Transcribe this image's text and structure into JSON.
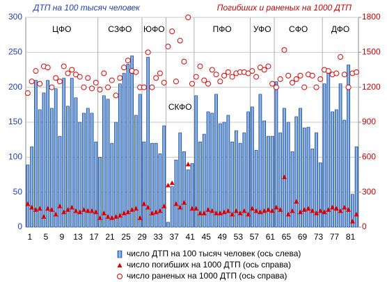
{
  "chart_data": {
    "type": "bar",
    "title": "ДТП на 100 тысяч человек",
    "subtitle": "Погибших и раненых на 1000 ДТП",
    "groups": [
      "ЦФО",
      "СЗФО",
      "ЮФО",
      "СКФО",
      "ПФО",
      "УФО",
      "СФО",
      "ДФО"
    ],
    "categories": [
      "1",
      null,
      null,
      null,
      "5",
      null,
      null,
      null,
      "9",
      null,
      null,
      null,
      "13",
      null,
      null,
      null,
      "17",
      null,
      null,
      null,
      "21",
      null,
      null,
      null,
      "25",
      null,
      null,
      null,
      "29",
      null,
      null,
      null,
      "33",
      null,
      null,
      null,
      "37",
      null,
      null,
      null,
      "41",
      null,
      null,
      null,
      "45",
      null,
      null,
      null,
      "49",
      null,
      null,
      null,
      "53",
      null,
      null,
      null,
      "57",
      null,
      null,
      null,
      "61",
      null,
      null,
      null,
      "65",
      null,
      null,
      null,
      "69",
      null,
      null,
      null,
      "73",
      null,
      null,
      null,
      "77",
      null,
      null,
      null,
      "81",
      null,
      null
    ],
    "series": [
      {
        "name": "число ДТП на 100 тысяч человек (ось слева)",
        "color": "#5b9bd5",
        "type": "bar",
        "values": [
          89,
          115,
          210,
          168,
          192,
          210,
          170,
          198,
          130,
          213,
          173,
          213,
          185,
          150,
          163,
          170,
          163,
          122,
          100,
          188,
          183,
          120,
          150,
          205,
          220,
          233,
          245,
          160,
          190,
          122,
          243,
          120,
          120,
          105,
          145,
          7,
          58,
          96,
          135,
          108,
          82,
          91,
          188,
          122,
          133,
          165,
          163,
          190,
          148,
          150,
          160,
          122,
          138,
          120,
          135,
          165,
          172,
          110,
          190,
          152,
          130,
          130,
          208,
          135,
          170,
          150,
          108,
          158,
          170,
          142,
          143,
          112,
          135,
          92,
          205,
          225,
          165,
          168,
          205,
          153,
          232,
          47,
          115
        ]
      },
      {
        "name": "число погибших на 1000 ДТП (ось справа)",
        "color": "#e00000",
        "type": "triangle",
        "axis": "y2",
        "values": [
          200,
          170,
          150,
          160,
          90,
          160,
          150,
          110,
          180,
          130,
          150,
          170,
          140,
          130,
          150,
          140,
          140,
          130,
          80,
          120,
          90,
          80,
          90,
          100,
          120,
          130,
          150,
          160,
          80,
          200,
          170,
          120,
          130,
          140,
          180,
          360,
          380,
          200,
          170,
          210,
          540,
          160,
          160,
          120,
          120,
          150,
          140,
          120,
          120,
          130,
          140,
          110,
          140,
          120,
          140,
          110,
          160,
          140,
          130,
          140,
          150,
          140,
          170,
          150,
          430,
          110,
          140,
          220,
          130,
          150,
          160,
          140,
          120,
          140,
          130,
          150,
          170,
          160,
          140,
          170,
          150,
          50,
          110
        ]
      },
      {
        "name": "число раненых на 1000 ДТП (ось справа)",
        "color": "#e00000",
        "type": "circle",
        "axis": "y2",
        "values": [
          1150,
          1250,
          1340,
          1230,
          1380,
          1370,
          1200,
          1280,
          1250,
          1380,
          1320,
          1350,
          1310,
          1290,
          1200,
          1280,
          1190,
          1240,
          1180,
          1320,
          1200,
          1260,
          1130,
          1280,
          1370,
          1430,
          1340,
          1330,
          1200,
          1200,
          1500,
          1200,
          1280,
          1320,
          1240,
          1550,
          1680,
          1250,
          1600,
          1420,
          1800,
          1230,
          1290,
          1380,
          1260,
          1230,
          1350,
          1310,
          1250,
          1300,
          1330,
          1290,
          1320,
          1330,
          1330,
          1320,
          1340,
          1290,
          1370,
          1350,
          1380,
          1230,
          1200,
          1270,
          1520,
          1300,
          1240,
          1270,
          1300,
          1200,
          1310,
          1300,
          1200,
          1270,
          1350,
          1340,
          1310,
          1320,
          1460,
          1310,
          1200,
          1320,
          1330
        ]
      }
    ],
    "ylim": [
      0,
      300
    ],
    "yticks": [
      0,
      50,
      100,
      150,
      200,
      250,
      300
    ],
    "y2lim": [
      0,
      1800
    ],
    "y2ticks": [
      0,
      300,
      600,
      900,
      1200,
      1500,
      1800
    ],
    "grid": true
  }
}
